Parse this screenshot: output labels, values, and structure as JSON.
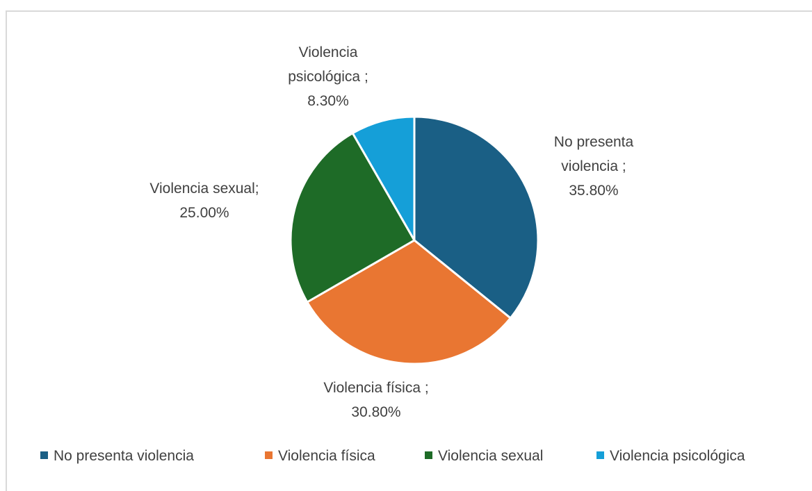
{
  "chart_data": {
    "type": "pie",
    "categories": [
      "No presenta violencia",
      "Violencia física",
      "Violencia sexual",
      "Violencia psicológica"
    ],
    "values": [
      35.8,
      30.8,
      25.0,
      8.3
    ],
    "value_format": "percent",
    "colors": [
      "#1a5f85",
      "#e97632",
      "#1e6b27",
      "#159fd8"
    ],
    "data_labels": [
      [
        "No presenta",
        "violencia ;",
        "35.80%"
      ],
      [
        "Violencia física ;",
        "30.80%"
      ],
      [
        "Violencia sexual;",
        "25.00%"
      ],
      [
        "Violencia",
        "psicológica ;",
        "8.30%"
      ]
    ],
    "legend_position": "bottom",
    "start_angle": "12 o'clock",
    "direction": "clockwise"
  }
}
